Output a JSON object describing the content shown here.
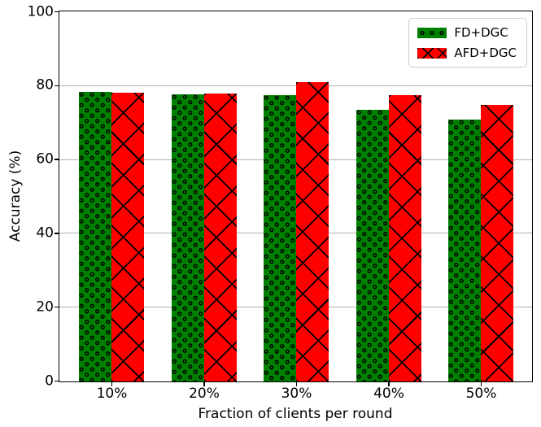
{
  "chart_data": {
    "type": "bar",
    "title": "",
    "xlabel": "Fraction of clients per round",
    "ylabel": "Accuracy (%)",
    "categories": [
      "10%",
      "20%",
      "30%",
      "40%",
      "50%"
    ],
    "series": [
      {
        "name": "FD+DGC",
        "color": "#008000",
        "hatch": "dots",
        "values": [
          78.4,
          77.8,
          77.5,
          73.6,
          71.0
        ]
      },
      {
        "name": "AFD+DGC",
        "color": "#ff0000",
        "hatch": "cross",
        "values": [
          78.3,
          77.9,
          81.0,
          77.6,
          75.0
        ]
      }
    ],
    "ylim": [
      0,
      100
    ],
    "yticks": [
      0,
      20,
      40,
      60,
      80,
      100
    ],
    "grid": true,
    "grid_color": "#b0b0b0",
    "legend_position": "upper right"
  }
}
